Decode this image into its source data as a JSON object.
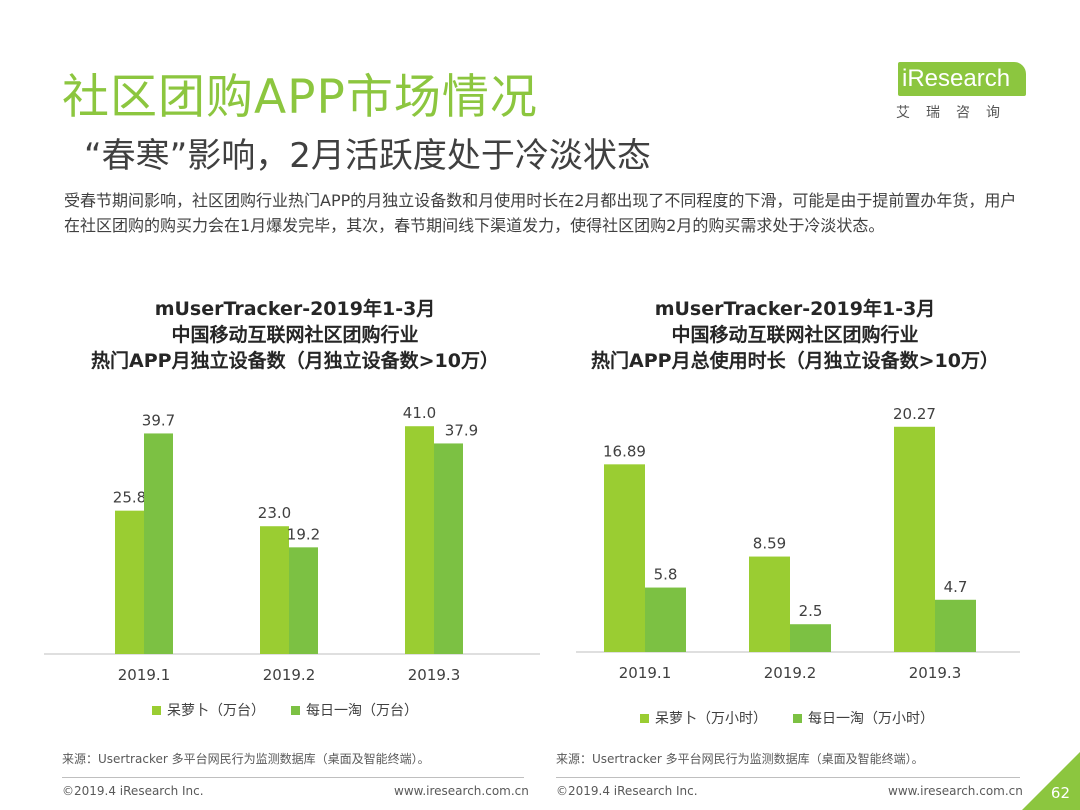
{
  "header": {
    "title": "社区团购APP市场情况",
    "subtitle": "“春寒”影响，2月活跃度处于冷淡状态"
  },
  "logo": {
    "brand": "iResearch",
    "brand_cn": "艾瑞咨询"
  },
  "body": {
    "paragraph": "受春节期间影响，社区团购行业热门APP的月独立设备数和月使用时长在2月都出现了不同程度的下滑，可能是由于提前置办年货，用户在社区团购的购买力会在1月爆发完毕，其次，春节期间线下渠道发力，使得社区团购2月的购买需求处于冷淡状态。"
  },
  "colors": {
    "accent": "#8CC63F",
    "series1": "#9ACD32",
    "series2": "#7CC143"
  },
  "chart_data": [
    {
      "type": "bar",
      "title": [
        "mUserTracker-2019年1-3月",
        "中国移动互联网社区团购行业",
        "热门APP月独立设备数（月独立设备数>10万）"
      ],
      "categories": [
        "2019.1",
        "2019.2",
        "2019.3"
      ],
      "series": [
        {
          "name": "呆萝卜（万台）",
          "values": [
            25.8,
            23.0,
            41.0
          ],
          "labels": [
            "25.8",
            "23.0",
            "41.0"
          ]
        },
        {
          "name": "每日一淘（万台）",
          "values": [
            39.7,
            19.2,
            37.9
          ],
          "labels": [
            "39.7",
            "19.2",
            "37.9"
          ]
        }
      ],
      "ylim": [
        0,
        45
      ],
      "grid": false,
      "legend": "bottom"
    },
    {
      "type": "bar",
      "title": [
        "mUserTracker-2019年1-3月",
        "中国移动互联网社区团购行业",
        "热门APP月总使用时长（月独立设备数>10万）"
      ],
      "categories": [
        "2019.1",
        "2019.2",
        "2019.3"
      ],
      "series": [
        {
          "name": "呆萝卜（万小时）",
          "values": [
            16.89,
            8.59,
            20.27
          ],
          "labels": [
            "16.89",
            "8.59",
            "20.27"
          ]
        },
        {
          "name": "每日一淘（万小时）",
          "values": [
            5.8,
            2.5,
            4.7
          ],
          "labels": [
            "5.8",
            "2.5",
            "4.7"
          ]
        }
      ],
      "ylim": [
        0,
        22.5
      ],
      "grid": false,
      "legend": "bottom"
    }
  ],
  "source": "来源：Usertracker 多平台网民行为监测数据库（桌面及智能终端）。",
  "footer": {
    "copyright": "©2019.4 iResearch Inc.",
    "url": "www.iresearch.com.cn",
    "page": "62"
  }
}
